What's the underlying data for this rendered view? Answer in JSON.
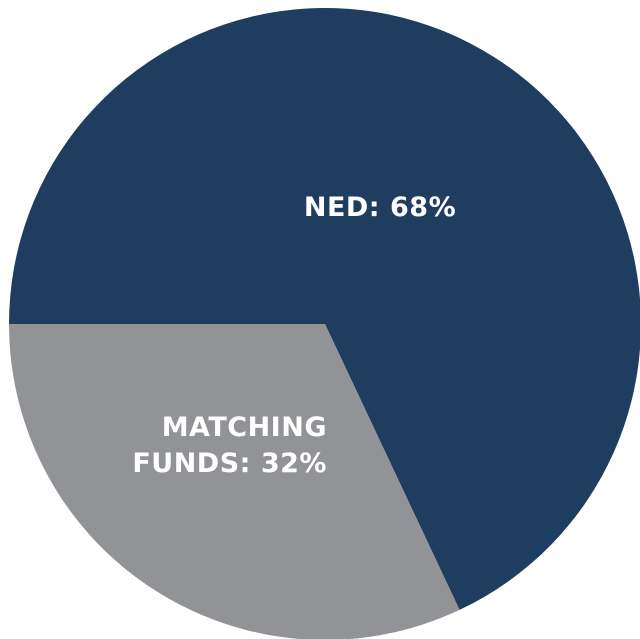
{
  "chart_data": {
    "type": "pie",
    "categories": [
      "NED:",
      "MATCHING FUNDS:"
    ],
    "values": [
      68,
      32
    ],
    "value_labels": [
      "68%",
      "32%"
    ],
    "colors": [
      "#1f3d5f",
      "#929396"
    ]
  }
}
